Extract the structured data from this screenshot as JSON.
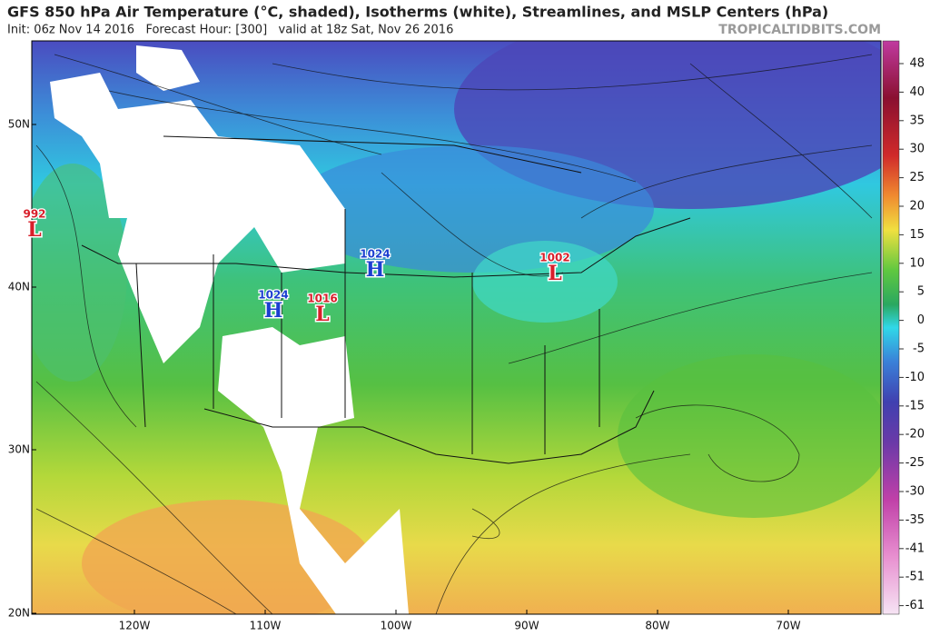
{
  "header": {
    "title": "GFS 850 hPa Air Temperature (°C, shaded), Isotherms (white), Streamlines, and MSLP Centers (hPa)",
    "subtitle": "Init: 06z Nov 14 2016   Forecast Hour: [300]   valid at 18z Sat, Nov 26 2016",
    "site": "TROPICALTIDBITS.COM"
  },
  "latitude_labels": [
    "50N",
    "40N",
    "30N",
    "20N"
  ],
  "longitude_labels": [
    "120W",
    "110W",
    "100W",
    "90W",
    "80W",
    "70W"
  ],
  "colorbar": {
    "labels": [
      48,
      40,
      35,
      30,
      25,
      20,
      15,
      10,
      5,
      0,
      -5,
      -10,
      -15,
      -20,
      -25,
      -30,
      -35,
      -41,
      -51,
      -61
    ]
  },
  "pressure_centers": [
    {
      "value": 992,
      "letter": "L"
    },
    {
      "value": 1024,
      "letter": "H"
    },
    {
      "value": 1024,
      "letter": "H"
    },
    {
      "value": 1016,
      "letter": "L"
    },
    {
      "value": 1002,
      "letter": "L"
    }
  ]
}
